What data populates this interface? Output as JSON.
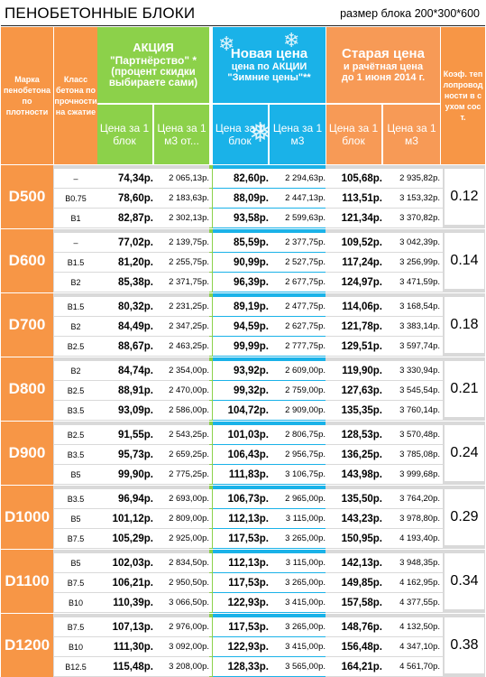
{
  "title": "ПЕНОБЕТОННЫЕ БЛОКИ",
  "block_size": "размер блока 200*300*600",
  "headers": {
    "mark": "Марка пенобетона по плотности",
    "class": "Класс бетона по прочности на сжатие",
    "promo_title": "АКЦИЯ",
    "promo_sub": "\"Партнёрство\" *",
    "promo_note": "(процент скидки выбираете сами)",
    "promo_block": "Цена за 1 блок",
    "promo_m3": "Цена за 1 м3 от...",
    "new_title": "Новая цена",
    "new_sub": "цена по АКЦИИ",
    "new_note": "\"Зимние цены\"**",
    "new_block": "Цена за 1 блок",
    "new_m3": "Цена за 1 м3",
    "old_title": "Старая цена",
    "old_sub": "и рачётная цена",
    "old_note": "до 1 июня 2014 г.",
    "old_block": "Цена за 1 блок",
    "old_m3": "Цена за 1 м3",
    "coef": "Коэф. теплопроводности в сухом сост."
  },
  "colors": {
    "orange": "#f79646",
    "green": "#8cd14a",
    "blue": "#1ab2e8",
    "salmon": "#f79a56",
    "grey": "#d9d9d9"
  },
  "groups": [
    {
      "mark": "D500",
      "coef": "0.12",
      "rows": [
        {
          "cls": "–",
          "p1": "74,34р.",
          "p2": "2 065,13р.",
          "p3": "82,60р.",
          "p4": "2 294,63р.",
          "p5": "105,68р.",
          "p6": "2 935,82р."
        },
        {
          "cls": "B0.75",
          "p1": "78,60р.",
          "p2": "2 183,63р.",
          "p3": "88,09р.",
          "p4": "2 447,13р.",
          "p5": "113,51р.",
          "p6": "3 153,32р."
        },
        {
          "cls": "B1",
          "p1": "82,87р.",
          "p2": "2 302,13р.",
          "p3": "93,58р.",
          "p4": "2 599,63р.",
          "p5": "121,34р.",
          "p6": "3 370,82р."
        }
      ]
    },
    {
      "mark": "D600",
      "coef": "0.14",
      "rows": [
        {
          "cls": "–",
          "p1": "77,02р.",
          "p2": "2 139,75р.",
          "p3": "85,59р.",
          "p4": "2 377,75р.",
          "p5": "109,52р.",
          "p6": "3 042,39р."
        },
        {
          "cls": "B1.5",
          "p1": "81,20р.",
          "p2": "2 255,75р.",
          "p3": "90,99р.",
          "p4": "2 527,75р.",
          "p5": "117,24р.",
          "p6": "3 256,99р."
        },
        {
          "cls": "B2",
          "p1": "85,38р.",
          "p2": "2 371,75р.",
          "p3": "96,39р.",
          "p4": "2 677,75р.",
          "p5": "124,97р.",
          "p6": "3 471,59р."
        }
      ]
    },
    {
      "mark": "D700",
      "coef": "0.18",
      "rows": [
        {
          "cls": "B1.5",
          "p1": "80,32р.",
          "p2": "2 231,25р.",
          "p3": "89,19р.",
          "p4": "2 477,75р.",
          "p5": "114,06р.",
          "p6": "3 168,54р."
        },
        {
          "cls": "B2",
          "p1": "84,49р.",
          "p2": "2 347,25р.",
          "p3": "94,59р.",
          "p4": "2 627,75р.",
          "p5": "121,78р.",
          "p6": "3 383,14р."
        },
        {
          "cls": "B2.5",
          "p1": "88,67р.",
          "p2": "2 463,25р.",
          "p3": "99,99р.",
          "p4": "2 777,75р.",
          "p5": "129,51р.",
          "p6": "3 597,74р."
        }
      ]
    },
    {
      "mark": "D800",
      "coef": "0.21",
      "rows": [
        {
          "cls": "B2",
          "p1": "84,74р.",
          "p2": "2 354,00р.",
          "p3": "93,92р.",
          "p4": "2 609,00р.",
          "p5": "119,90р.",
          "p6": "3 330,94р."
        },
        {
          "cls": "B2.5",
          "p1": "88,91р.",
          "p2": "2 470,00р.",
          "p3": "99,32р.",
          "p4": "2 759,00р.",
          "p5": "127,63р.",
          "p6": "3 545,54р."
        },
        {
          "cls": "B3.5",
          "p1": "93,09р.",
          "p2": "2 586,00р.",
          "p3": "104,72р.",
          "p4": "2 909,00р.",
          "p5": "135,35р.",
          "p6": "3 760,14р."
        }
      ]
    },
    {
      "mark": "D900",
      "coef": "0.24",
      "rows": [
        {
          "cls": "B2.5",
          "p1": "91,55р.",
          "p2": "2 543,25р.",
          "p3": "101,03р.",
          "p4": "2 806,75р.",
          "p5": "128,53р.",
          "p6": "3 570,48р."
        },
        {
          "cls": "B3.5",
          "p1": "95,73р.",
          "p2": "2 659,25р.",
          "p3": "106,43р.",
          "p4": "2 956,75р.",
          "p5": "136,25р.",
          "p6": "3 785,08р."
        },
        {
          "cls": "B5",
          "p1": "99,90р.",
          "p2": "2 775,25р.",
          "p3": "111,83р.",
          "p4": "3 106,75р.",
          "p5": "143,98р.",
          "p6": "3 999,68р."
        }
      ]
    },
    {
      "mark": "D1000",
      "coef": "0.29",
      "rows": [
        {
          "cls": "B3.5",
          "p1": "96,94р.",
          "p2": "2 693,00р.",
          "p3": "106,73р.",
          "p4": "2 965,00р.",
          "p5": "135,50р.",
          "p6": "3 764,20р."
        },
        {
          "cls": "B5",
          "p1": "101,12р.",
          "p2": "2 809,00р.",
          "p3": "112,13р.",
          "p4": "3 115,00р.",
          "p5": "143,23р.",
          "p6": "3 978,80р."
        },
        {
          "cls": "B7.5",
          "p1": "105,29р.",
          "p2": "2 925,00р.",
          "p3": "117,53р.",
          "p4": "3 265,00р.",
          "p5": "150,95р.",
          "p6": "4 193,40р."
        }
      ]
    },
    {
      "mark": "D1100",
      "coef": "0.34",
      "rows": [
        {
          "cls": "B5",
          "p1": "102,03р.",
          "p2": "2 834,50р.",
          "p3": "112,13р.",
          "p4": "3 115,00р.",
          "p5": "142,13р.",
          "p6": "3 948,35р."
        },
        {
          "cls": "B7.5",
          "p1": "106,21р.",
          "p2": "2 950,50р.",
          "p3": "117,53р.",
          "p4": "3 265,00р.",
          "p5": "149,85р.",
          "p6": "4 162,95р."
        },
        {
          "cls": "B10",
          "p1": "110,39р.",
          "p2": "3 066,50р.",
          "p3": "122,93р.",
          "p4": "3 415,00р.",
          "p5": "157,58р.",
          "p6": "4 377,55р."
        }
      ]
    },
    {
      "mark": "D1200",
      "coef": "0.38",
      "rows": [
        {
          "cls": "B7.5",
          "p1": "107,13р.",
          "p2": "2 976,00р.",
          "p3": "117,53р.",
          "p4": "3 265,00р.",
          "p5": "148,76р.",
          "p6": "4 132,50р."
        },
        {
          "cls": "B10",
          "p1": "111,30р.",
          "p2": "3 092,00р.",
          "p3": "122,93р.",
          "p4": "3 415,00р.",
          "p5": "156,48р.",
          "p6": "4 347,10р."
        },
        {
          "cls": "B12.5",
          "p1": "115,48р.",
          "p2": "3 208,00р.",
          "p3": "128,33р.",
          "p4": "3 565,00р.",
          "p5": "164,21р.",
          "p6": "4 561,70р."
        }
      ]
    }
  ]
}
